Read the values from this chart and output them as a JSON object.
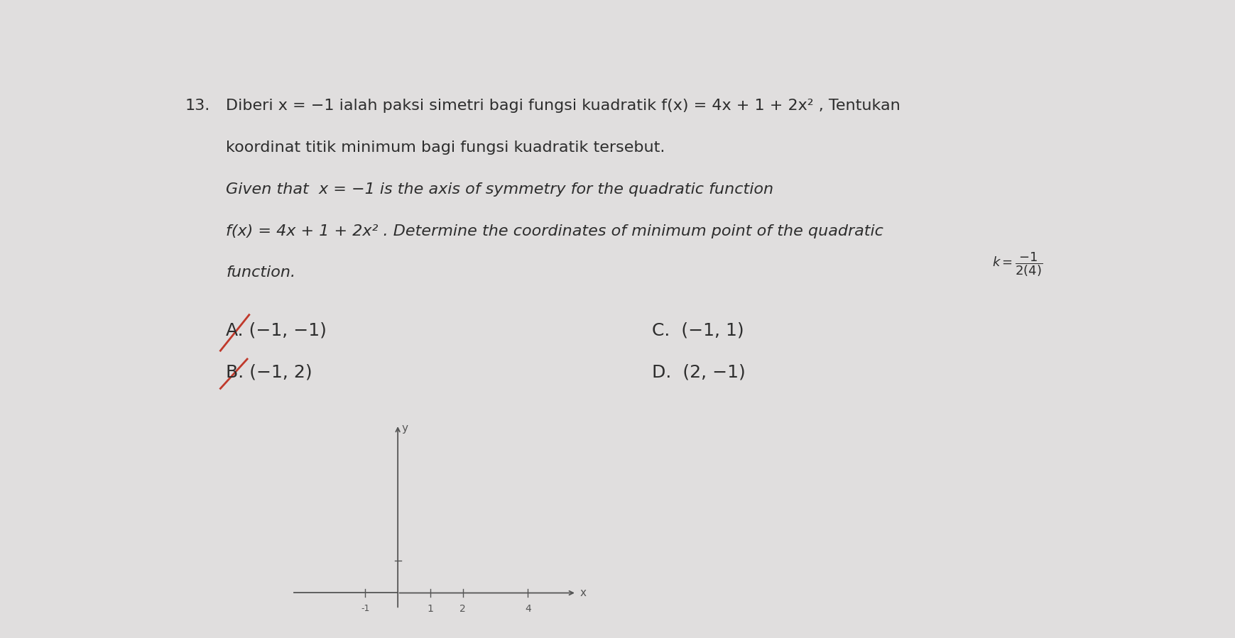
{
  "background_color": "#e0dede",
  "question_number": "13.",
  "malay_line1": "Diberi x = −1 ialah paksi simetri bagi fungsi kuadratik f(x) = 4x + 1 + 2x² , Tentukan",
  "malay_line2": "koordinat titik minimum bagi fungsi kuadratik tersebut.",
  "english_line1": "Given that  x = −1 is the axis of symmetry for the quadratic function",
  "english_line2": "f(x) = 4x + 1 + 2x² . Determine the coordinates of minimum point of the quadratic",
  "english_line3": "function.",
  "option_A_label": "A.",
  "option_A_text": " (−1, −1)",
  "option_B_label": "B.",
  "option_B_text": " (−1, 2)",
  "option_C": "C.  (−1, 1)",
  "option_D": "D.  (2, −1)",
  "text_color": "#2d2d2d",
  "strike_color": "#c0392b",
  "font_size_main": 16,
  "font_size_options": 18,
  "axis_color": "#555555",
  "tick_labels": [
    "1",
    "2",
    "4"
  ],
  "neg_tick_label": "-1",
  "y_label": "y",
  "x_label": "x"
}
